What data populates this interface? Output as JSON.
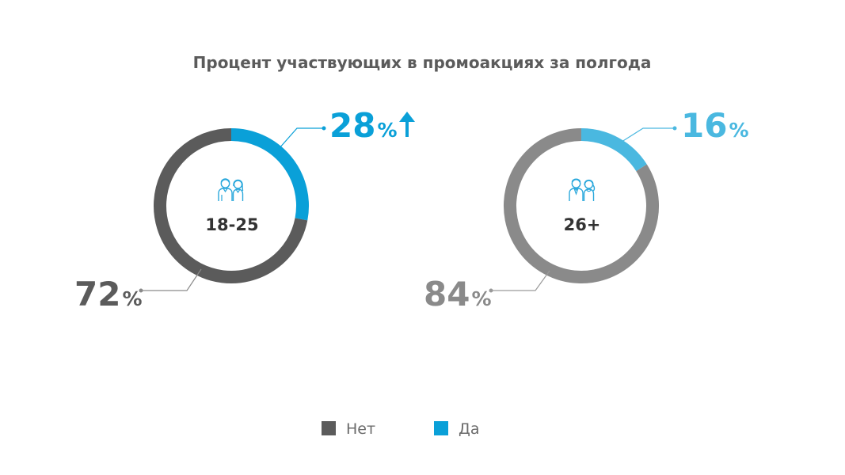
{
  "chart_data": {
    "type": "pie",
    "title": "Процент участвующих в промоакциях за полгода",
    "legend": {
      "placement": "bottom-center",
      "items": [
        {
          "label": "Нет",
          "color": "#5b5b5b"
        },
        {
          "label": "Да",
          "color": "#0aa0d8"
        }
      ]
    },
    "charts": [
      {
        "center_label": "18-25",
        "icon": "young-couple-icon",
        "slices": [
          {
            "label": "Нет",
            "value": 72,
            "color": "#5b5b5b",
            "display": "72",
            "unit": "%"
          },
          {
            "label": "Да",
            "value": 28,
            "color": "#0aa0d8",
            "display": "28",
            "unit": "%",
            "marker": "up-arrow-icon"
          }
        ]
      },
      {
        "center_label": "26+",
        "icon": "adult-couple-icon",
        "slices": [
          {
            "label": "Нет",
            "value": 84,
            "color": "#8a8a8a",
            "display": "84",
            "unit": "%"
          },
          {
            "label": "Да",
            "value": 16,
            "color": "#4ab8e0",
            "display": "16",
            "unit": "%"
          }
        ]
      }
    ]
  }
}
